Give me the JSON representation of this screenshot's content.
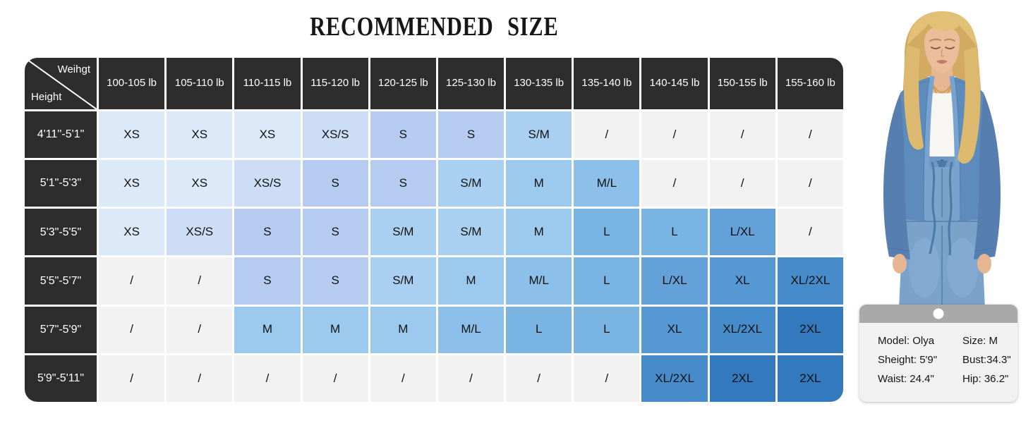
{
  "title": "RECOMMENDED SIZE",
  "chart_data": {
    "type": "table",
    "title": "RECOMMENDED SIZE",
    "corner": {
      "top": "Weihgt",
      "bottom": "Height"
    },
    "columns": [
      "100-105 lb",
      "105-110 lb",
      "110-115 lb",
      "115-120 lb",
      "120-125 lb",
      "125-130 lb",
      "130-135 lb",
      "135-140 lb",
      "140-145 lb",
      "150-155 lb",
      "155-160 lb"
    ],
    "rows": [
      {
        "height": "4'11''-5'1\"",
        "sizes": [
          "XS",
          "XS",
          "XS",
          "XS/S",
          "S",
          "S",
          "S/M",
          "/",
          "/",
          "/",
          "/"
        ]
      },
      {
        "height": "5'1\"-5'3\"",
        "sizes": [
          "XS",
          "XS",
          "XS/S",
          "S",
          "S",
          "S/M",
          "M",
          "M/L",
          "/",
          "/",
          "/"
        ]
      },
      {
        "height": "5'3\"-5'5\"",
        "sizes": [
          "XS",
          "XS/S",
          "S",
          "S",
          "S/M",
          "S/M",
          "M",
          "L",
          "L",
          "L/XL",
          "/"
        ]
      },
      {
        "height": "5'5\"-5'7\"",
        "sizes": [
          "/",
          "/",
          "S",
          "S",
          "S/M",
          "M",
          "M/L",
          "L",
          "L/XL",
          "XL",
          "XL/2XL"
        ]
      },
      {
        "height": "5'7\"-5'9\"",
        "sizes": [
          "/",
          "/",
          "M",
          "M",
          "M",
          "M/L",
          "L",
          "L",
          "XL",
          "XL/2XL",
          "2XL"
        ]
      },
      {
        "height": "5'9\"-5'11\"",
        "sizes": [
          "/",
          "/",
          "/",
          "/",
          "/",
          "/",
          "/",
          "/",
          "XL/2XL",
          "2XL",
          "2XL"
        ]
      }
    ]
  },
  "colors": {
    "header_bg": "#2d2d2d",
    "grid_line": "#ffffff",
    "size_fill": {
      "XS": "#dce9f8",
      "XS/S": "#cdddf6",
      "S": "#b5cbf0",
      "S/M": "#a9d0f1",
      "M": "#9ccaee",
      "M/L": "#8cbfe9",
      "L": "#7ab4e3",
      "L/XL": "#64a1d8",
      "XL": "#5598d4",
      "XL/2XL": "#468cca",
      "2XL": "#3379bd",
      "/": "#f2f2f2"
    }
  },
  "model_card": {
    "rows": [
      {
        "left": "Model: Olya",
        "right": "Size: M"
      },
      {
        "left": "Sheight: 5'9\"",
        "right": "Bust:34.3\""
      },
      {
        "left": "Waist: 24.4\"",
        "right": "Hip: 36.2\""
      }
    ]
  },
  "model_photo": {
    "label": "woman wearing an open blue denim tie-front jacket, white tank top and jeans"
  }
}
